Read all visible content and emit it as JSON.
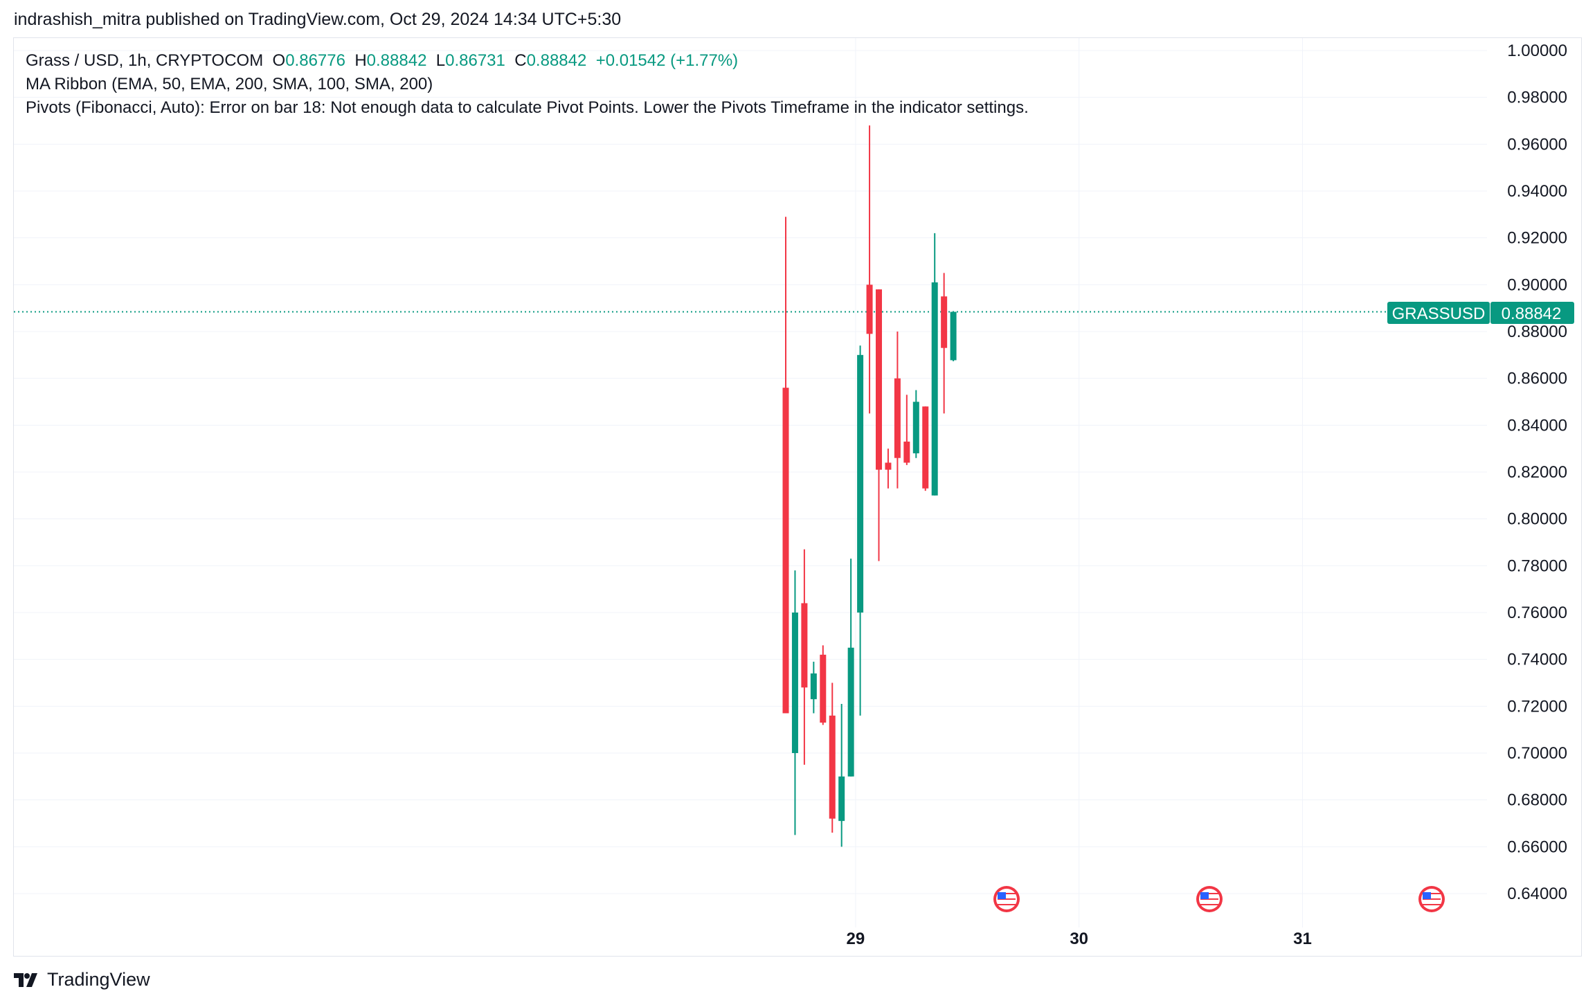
{
  "header": {
    "publisher": "indrashish_mitra",
    "published_text": "published on TradingView.com,",
    "date": "Oct 29, 2024 14:34 UTC+5:30"
  },
  "legend": {
    "symbol": "Grass / USD, 1h, CRYPTOCOM",
    "o_label": "O",
    "o_value": "0.86776",
    "h_label": "H",
    "h_value": "0.88842",
    "l_label": "L",
    "l_value": "0.86731",
    "c_label": "C",
    "c_value": "0.88842",
    "change": "+0.01542 (+1.77%)",
    "indicator1": "MA Ribbon (EMA, 50, EMA, 200, SMA, 100, SMA, 200)",
    "indicator2": "Pivots (Fibonacci, Auto): Error on bar 18: Not enough data to calculate Pivot Points. Lower the Pivots Timeframe in the indicator settings."
  },
  "price_tag": {
    "symbol": "GRASSUSD",
    "price": "0.88842",
    "price_value": 0.88842
  },
  "colors": {
    "up": "#089981",
    "down": "#f23645",
    "grid": "#f0f3fa",
    "text": "#131722"
  },
  "event_icons": [
    "us-flag-icon",
    "us-flag-icon",
    "us-flag-icon"
  ],
  "footer": {
    "brand": "TradingView"
  },
  "chart_data": {
    "type": "candlestick",
    "ylim": [
      0.62,
      1.0
    ],
    "y_ticks": [
      "1.00000",
      "0.98000",
      "0.96000",
      "0.94000",
      "0.92000",
      "0.90000",
      "0.88000",
      "0.86000",
      "0.84000",
      "0.82000",
      "0.80000",
      "0.78000",
      "0.76000",
      "0.74000",
      "0.72000",
      "0.70000",
      "0.68000",
      "0.66000",
      "0.64000"
    ],
    "x_ticks": [
      "29",
      "30",
      "31"
    ],
    "x_tick_hours": [
      7.5,
      31.5,
      55.5
    ],
    "candles": [
      {
        "t": 0,
        "o": 0.856,
        "h": 0.929,
        "l": 0.717,
        "c": 0.717
      },
      {
        "t": 1,
        "o": 0.7,
        "h": 0.778,
        "l": 0.665,
        "c": 0.76
      },
      {
        "t": 2,
        "o": 0.764,
        "h": 0.787,
        "l": 0.695,
        "c": 0.728
      },
      {
        "t": 3,
        "o": 0.723,
        "h": 0.739,
        "l": 0.717,
        "c": 0.734
      },
      {
        "t": 4,
        "o": 0.742,
        "h": 0.746,
        "l": 0.712,
        "c": 0.713
      },
      {
        "t": 5,
        "o": 0.716,
        "h": 0.73,
        "l": 0.666,
        "c": 0.672
      },
      {
        "t": 6,
        "o": 0.671,
        "h": 0.721,
        "l": 0.66,
        "c": 0.69
      },
      {
        "t": 7,
        "o": 0.69,
        "h": 0.783,
        "l": 0.69,
        "c": 0.745
      },
      {
        "t": 8,
        "o": 0.76,
        "h": 0.874,
        "l": 0.716,
        "c": 0.87
      },
      {
        "t": 9,
        "o": 0.9,
        "h": 0.968,
        "l": 0.845,
        "c": 0.879
      },
      {
        "t": 10,
        "o": 0.898,
        "h": 0.898,
        "l": 0.782,
        "c": 0.821
      },
      {
        "t": 11,
        "o": 0.824,
        "h": 0.83,
        "l": 0.813,
        "c": 0.821
      },
      {
        "t": 12,
        "o": 0.86,
        "h": 0.88,
        "l": 0.813,
        "c": 0.826
      },
      {
        "t": 13,
        "o": 0.833,
        "h": 0.853,
        "l": 0.823,
        "c": 0.824
      },
      {
        "t": 14,
        "o": 0.828,
        "h": 0.855,
        "l": 0.826,
        "c": 0.85
      },
      {
        "t": 15,
        "o": 0.848,
        "h": 0.848,
        "l": 0.812,
        "c": 0.813
      },
      {
        "t": 16,
        "o": 0.81,
        "h": 0.922,
        "l": 0.81,
        "c": 0.901
      },
      {
        "t": 17,
        "o": 0.895,
        "h": 0.905,
        "l": 0.845,
        "c": 0.873
      },
      {
        "t": 18,
        "o": 0.86776,
        "h": 0.88842,
        "l": 0.86731,
        "c": 0.88842
      }
    ]
  }
}
